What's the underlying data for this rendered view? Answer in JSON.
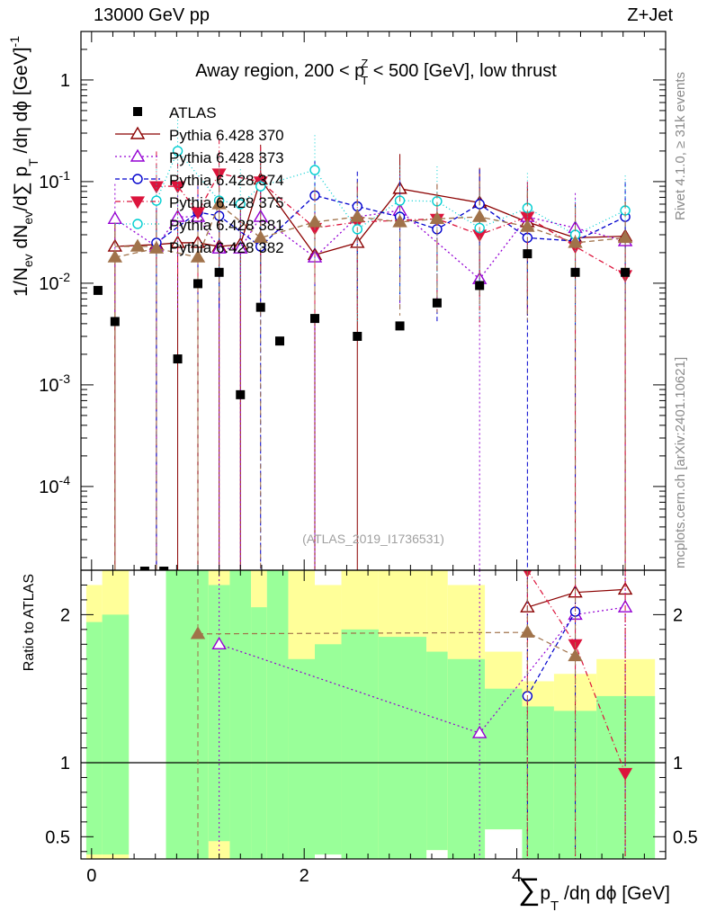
{
  "header": {
    "left": "13000 GeV pp",
    "right": "Z+Jet"
  },
  "side_labels": {
    "rivet": "Rivet 4.1.0, ≥ 31k events",
    "mcplots": "mcplots.cern.ch [arXiv:2401.10621]"
  },
  "chart_data": {
    "type": "scatter",
    "title": "Away region, 200 < p_T^Z < 500 [GeV], low thrust",
    "title_parts": {
      "pre": "Away region, 200 < p",
      "sup": "Z",
      "sub": "T",
      "post": " < 500 [GeV], low thrust"
    },
    "watermark": "(ATLAS_2019_I1736531)",
    "xlabel": "∑p_T/dη dϕ [GeV]",
    "xlabel_parts": {
      "sum": "∑",
      "p": "p",
      "sub": "T",
      "rest": " /dη dϕ [GeV]"
    },
    "ylabel": "1/N_ev dN_ev/d∑p_T/dη dϕ [GeV]^-1",
    "ylabel_parts": {
      "pre": "1/N",
      "sub1": "ev",
      "mid": " dN",
      "sub2": "ev",
      "mid2": "/d∑ p",
      "sub3": "T",
      "post": " /dη dϕ  [GeV]",
      "sup": "-1"
    },
    "ratio_ylabel": "Ratio to ATLAS",
    "xlim": [
      -0.1,
      5.4
    ],
    "ylim": [
      1.5e-05,
      3.0
    ],
    "ratio_ylim": [
      0.35,
      2.3
    ],
    "x_ticks": [
      0,
      2,
      4
    ],
    "y_ticks": [
      {
        "value": 0.0001,
        "base": "10",
        "exp": "-4"
      },
      {
        "value": 0.001,
        "base": "10",
        "exp": "-3"
      },
      {
        "value": 0.01,
        "base": "10",
        "exp": "-2"
      },
      {
        "value": 0.1,
        "base": "10",
        "exp": "-1"
      },
      {
        "value": 1,
        "base": "1",
        "exp": ""
      }
    ],
    "ratio_ticks": [
      {
        "value": 0.5,
        "label": "0.5"
      },
      {
        "value": 1,
        "label": "1"
      },
      {
        "value": 2,
        "label": "2"
      }
    ],
    "bins": [
      {
        "lo": -0.05,
        "hi": 0.1,
        "yellow": [
          0.35,
          2.2
        ],
        "green": [
          0.38,
          1.95
        ]
      },
      {
        "lo": 0.1,
        "hi": 0.35,
        "yellow": [
          0.35,
          2.3
        ],
        "green": [
          0.38,
          2.0
        ]
      },
      {
        "lo": 0.35,
        "hi": 0.7,
        "yellow": [
          0.35,
          0.35
        ],
        "green": [
          0.35,
          0.35
        ]
      },
      {
        "lo": 0.7,
        "hi": 1.1,
        "yellow": [
          0.35,
          2.3
        ],
        "green": [
          0.35,
          2.3
        ]
      },
      {
        "lo": 1.1,
        "hi": 1.3,
        "yellow": [
          0.35,
          2.3
        ],
        "green": [
          0.47,
          2.2
        ]
      },
      {
        "lo": 1.3,
        "hi": 1.5,
        "yellow": [
          0.35,
          2.3
        ],
        "green": [
          0.35,
          2.3
        ]
      },
      {
        "lo": 1.5,
        "hi": 1.65,
        "yellow": [
          0.35,
          2.3
        ],
        "green": [
          0.35,
          2.05
        ]
      },
      {
        "lo": 1.65,
        "hi": 1.85,
        "yellow": [
          0.35,
          2.3
        ],
        "green": [
          0.35,
          2.3
        ]
      },
      {
        "lo": 1.85,
        "hi": 2.1,
        "yellow": [
          0.35,
          2.3
        ],
        "green": [
          0.35,
          1.7
        ]
      },
      {
        "lo": 2.1,
        "hi": 2.35,
        "yellow": [
          0.38,
          2.2
        ],
        "green": [
          0.38,
          1.8
        ]
      },
      {
        "lo": 2.35,
        "hi": 2.7,
        "yellow": [
          0.35,
          2.3
        ],
        "green": [
          0.35,
          1.9
        ]
      },
      {
        "lo": 2.7,
        "hi": 3.15,
        "yellow": [
          0.35,
          2.3
        ],
        "green": [
          0.35,
          1.85
        ]
      },
      {
        "lo": 3.15,
        "hi": 3.35,
        "yellow": [
          0.41,
          2.3
        ],
        "green": [
          0.41,
          1.75
        ]
      },
      {
        "lo": 3.35,
        "hi": 3.7,
        "yellow": [
          0.35,
          2.2
        ],
        "green": [
          0.35,
          1.7
        ]
      },
      {
        "lo": 3.7,
        "hi": 4.05,
        "yellow": [
          0.55,
          1.75
        ],
        "green": [
          0.55,
          1.5
        ]
      },
      {
        "lo": 4.05,
        "hi": 4.35,
        "yellow": [
          0.68,
          1.55
        ],
        "green": [
          0.35,
          1.38
        ]
      },
      {
        "lo": 4.35,
        "hi": 4.75,
        "yellow": [
          0.55,
          1.6
        ],
        "green": [
          0.35,
          1.35
        ]
      },
      {
        "lo": 4.75,
        "hi": 5.3,
        "yellow": [
          0.65,
          1.7
        ],
        "green": [
          0.35,
          1.45
        ]
      }
    ],
    "atlas": {
      "name": "ATLAS",
      "points": [
        {
          "x": 0.06,
          "y": 0.0085
        },
        {
          "x": 0.22,
          "y": 0.0042
        },
        {
          "x": 0.81,
          "y": 0.0018
        },
        {
          "x": 1.0,
          "y": 0.0099
        },
        {
          "x": 1.2,
          "y": 0.0128
        },
        {
          "x": 1.4,
          "y": 0.0008
        },
        {
          "x": 1.59,
          "y": 0.0058
        },
        {
          "x": 1.77,
          "y": 0.0027
        },
        {
          "x": 2.1,
          "y": 0.0045
        },
        {
          "x": 2.5,
          "y": 0.003
        },
        {
          "x": 2.9,
          "y": 0.0038
        },
        {
          "x": 3.25,
          "y": 0.0064
        },
        {
          "x": 3.65,
          "y": 0.0095
        },
        {
          "x": 4.1,
          "y": 0.0195
        },
        {
          "x": 4.55,
          "y": 0.0128
        },
        {
          "x": 5.02,
          "y": 0.0128
        }
      ]
    },
    "series": [
      {
        "name": "Pythia 6.428 370",
        "color": "#8b0000",
        "marker": "triangle-up-open",
        "dash": "",
        "values": [
          {
            "x": 0.22,
            "y": 0.023
          },
          {
            "x": 0.61,
            "y": 0.024
          },
          {
            "x": 0.81,
            "y": 0.025
          },
          {
            "x": 1.0,
            "y": 0.025
          },
          {
            "x": 1.2,
            "y": 0.023
          },
          {
            "x": 1.4,
            "y": 0.024
          },
          {
            "x": 1.59,
            "y": 0.105
          },
          {
            "x": 2.1,
            "y": 0.019
          },
          {
            "x": 2.5,
            "y": 0.025
          },
          {
            "x": 2.9,
            "y": 0.085
          },
          {
            "x": 3.65,
            "y": 0.062
          },
          {
            "x": 4.1,
            "y": 0.04
          },
          {
            "x": 4.55,
            "y": 0.028
          },
          {
            "x": 5.02,
            "y": 0.029
          }
        ],
        "ratio": [
          {
            "x": 4.1,
            "y": 2.05
          },
          {
            "x": 4.55,
            "y": 2.15
          },
          {
            "x": 5.02,
            "y": 2.17
          }
        ]
      },
      {
        "name": "Pythia 6.428 373",
        "color": "#9400d3",
        "marker": "triangle-up-open",
        "dash": "2,3",
        "values": [
          {
            "x": 0.22,
            "y": 0.043
          },
          {
            "x": 0.61,
            "y": 0.023
          },
          {
            "x": 0.81,
            "y": 0.045
          },
          {
            "x": 1.0,
            "y": 0.045
          },
          {
            "x": 1.2,
            "y": 0.022
          },
          {
            "x": 1.4,
            "y": 0.022
          },
          {
            "x": 1.59,
            "y": 0.045
          },
          {
            "x": 2.1,
            "y": 0.018
          },
          {
            "x": 2.5,
            "y": 0.045
          },
          {
            "x": 2.9,
            "y": 0.052
          },
          {
            "x": 3.65,
            "y": 0.011
          },
          {
            "x": 4.1,
            "y": 0.045
          },
          {
            "x": 4.55,
            "y": 0.035
          },
          {
            "x": 5.02,
            "y": 0.026
          }
        ],
        "ratio": [
          {
            "x": 1.2,
            "y": 1.8
          },
          {
            "x": 3.65,
            "y": 1.2
          },
          {
            "x": 4.55,
            "y": 2.0
          },
          {
            "x": 5.02,
            "y": 2.05
          }
        ]
      },
      {
        "name": "Pythia 6.428 374",
        "color": "#0000cd",
        "marker": "circle-open",
        "dash": "5,3",
        "values": [
          {
            "x": 0.61,
            "y": 0.025
          },
          {
            "x": 1.0,
            "y": 0.05
          },
          {
            "x": 1.2,
            "y": 0.046
          },
          {
            "x": 1.59,
            "y": 0.023
          },
          {
            "x": 2.1,
            "y": 0.073
          },
          {
            "x": 2.5,
            "y": 0.057
          },
          {
            "x": 2.9,
            "y": 0.045
          },
          {
            "x": 3.25,
            "y": 0.034
          },
          {
            "x": 3.65,
            "y": 0.06
          },
          {
            "x": 4.1,
            "y": 0.028
          },
          {
            "x": 4.55,
            "y": 0.026
          },
          {
            "x": 5.02,
            "y": 0.045
          }
        ],
        "ratio": [
          {
            "x": 4.1,
            "y": 1.45
          },
          {
            "x": 4.55,
            "y": 2.02
          }
        ]
      },
      {
        "name": "Pythia 6.428 375",
        "color": "#dc143c",
        "marker": "triangle-down-filled",
        "dash": "6,3,1,3",
        "values": [
          {
            "x": 0.61,
            "y": 0.09
          },
          {
            "x": 0.81,
            "y": 0.09
          },
          {
            "x": 1.0,
            "y": 0.05
          },
          {
            "x": 1.2,
            "y": 0.12
          },
          {
            "x": 1.59,
            "y": 0.1
          },
          {
            "x": 2.1,
            "y": 0.035
          },
          {
            "x": 2.5,
            "y": 0.04
          },
          {
            "x": 3.25,
            "y": 0.043
          },
          {
            "x": 3.65,
            "y": 0.03
          },
          {
            "x": 4.1,
            "y": 0.045
          },
          {
            "x": 4.55,
            "y": 0.023
          },
          {
            "x": 5.02,
            "y": 0.012
          }
        ],
        "ratio": [
          {
            "x": 4.1,
            "y": 2.3
          },
          {
            "x": 4.55,
            "y": 1.8
          },
          {
            "x": 5.02,
            "y": 0.93
          }
        ]
      },
      {
        "name": "Pythia 6.428 381",
        "color": "#00ced1",
        "marker": "circle-open",
        "dash": "1,3",
        "values": [
          {
            "x": 0.61,
            "y": 0.065
          },
          {
            "x": 0.81,
            "y": 0.2
          },
          {
            "x": 1.2,
            "y": 0.065
          },
          {
            "x": 1.4,
            "y": 0.06
          },
          {
            "x": 1.59,
            "y": 0.09
          },
          {
            "x": 2.1,
            "y": 0.13
          },
          {
            "x": 2.5,
            "y": 0.034
          },
          {
            "x": 2.9,
            "y": 0.065
          },
          {
            "x": 3.25,
            "y": 0.064
          },
          {
            "x": 3.65,
            "y": 0.035
          },
          {
            "x": 4.1,
            "y": 0.055
          },
          {
            "x": 4.55,
            "y": 0.03
          },
          {
            "x": 5.02,
            "y": 0.052
          }
        ],
        "ratio": []
      },
      {
        "name": "Pythia 6.428 382",
        "color": "#a0724a",
        "marker": "triangle-up-filled",
        "dash": "6,4",
        "values": [
          {
            "x": 0.22,
            "y": 0.018
          },
          {
            "x": 0.61,
            "y": 0.022
          },
          {
            "x": 1.0,
            "y": 0.018
          },
          {
            "x": 1.2,
            "y": 0.06
          },
          {
            "x": 1.59,
            "y": 0.028
          },
          {
            "x": 2.1,
            "y": 0.04
          },
          {
            "x": 2.5,
            "y": 0.045
          },
          {
            "x": 2.9,
            "y": 0.04
          },
          {
            "x": 3.25,
            "y": 0.043
          },
          {
            "x": 3.65,
            "y": 0.045
          },
          {
            "x": 4.1,
            "y": 0.036
          },
          {
            "x": 4.55,
            "y": 0.025
          },
          {
            "x": 5.02,
            "y": 0.028
          }
        ],
        "ratio": [
          {
            "x": 1.0,
            "y": 1.87
          },
          {
            "x": 4.1,
            "y": 1.88
          },
          {
            "x": 4.55,
            "y": 1.72
          }
        ]
      }
    ]
  }
}
